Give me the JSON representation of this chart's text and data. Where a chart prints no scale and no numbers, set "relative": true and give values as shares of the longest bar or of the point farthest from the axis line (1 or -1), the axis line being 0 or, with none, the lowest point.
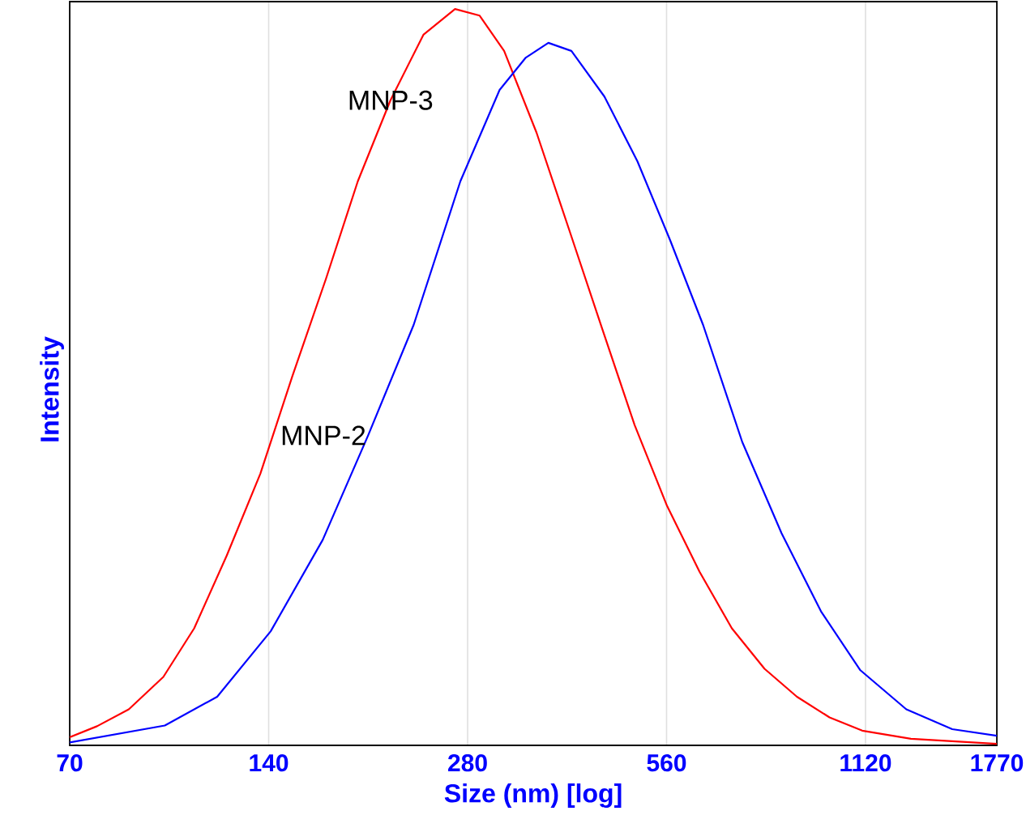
{
  "chart_data": {
    "type": "line",
    "xlabel": "Size (nm) [log]",
    "ylabel": "Intensity",
    "relative": true,
    "log": "x",
    "grid": "x",
    "legend": false,
    "marker": "none",
    "line_style": "solid",
    "xlim": [
      70,
      1770
    ],
    "xticks": [
      70,
      140,
      280,
      560,
      1120,
      1770
    ],
    "series": [
      {
        "name": "MNP-3",
        "color": "#ff0000",
        "x": [
          70,
          77,
          86,
          97,
          108,
          121,
          136,
          152,
          171,
          191,
          214,
          240,
          268,
          292,
          318,
          356,
          399,
          447,
          501,
          561,
          628,
          703,
          788,
          882,
          988,
          1107,
          1312,
          1770
        ],
        "values": [
          0.011,
          0.026,
          0.049,
          0.093,
          0.159,
          0.258,
          0.369,
          0.501,
          0.634,
          0.766,
          0.876,
          0.965,
          1.0,
          0.991,
          0.943,
          0.832,
          0.7,
          0.567,
          0.435,
          0.325,
          0.236,
          0.159,
          0.104,
          0.066,
          0.038,
          0.02,
          0.009,
          0.002
        ]
      },
      {
        "name": "MNP-2",
        "color": "#0000ff",
        "x": [
          70,
          97.5,
          117,
          141,
          169,
          198,
          232,
          273,
          313,
          343,
          371,
          402,
          451,
          506,
          567,
          636,
          729,
          836,
          959,
          1100,
          1291,
          1515,
          1770
        ],
        "values": [
          0.004,
          0.027,
          0.066,
          0.155,
          0.279,
          0.421,
          0.571,
          0.766,
          0.89,
          0.934,
          0.954,
          0.943,
          0.881,
          0.793,
          0.686,
          0.571,
          0.412,
          0.288,
          0.182,
          0.102,
          0.049,
          0.022,
          0.013
        ]
      }
    ]
  }
}
